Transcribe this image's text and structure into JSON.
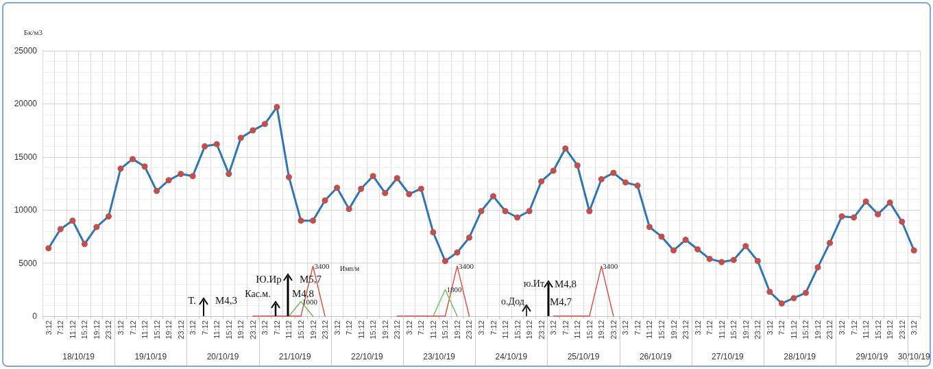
{
  "chart_data": {
    "type": "line",
    "ylabel": "Бк/м3",
    "categories": [
      "3:12",
      "7:12",
      "11:12",
      "15:12",
      "19:12",
      "23:12",
      "3:12",
      "7:12",
      "11:12",
      "15:12",
      "19:12",
      "23:12",
      "3:12",
      "7:12",
      "11:12",
      "15:12",
      "19:12",
      "23:12",
      "3:12",
      "7:12",
      "11:12",
      "15:12",
      "19:12",
      "23:12",
      "3:12",
      "7:12",
      "11:12",
      "15:12",
      "19:12",
      "23:12",
      "3:12",
      "7:12",
      "11:12",
      "15:12",
      "19:12",
      "23:12",
      "3:12",
      "7:12",
      "11:12",
      "15:12",
      "19:12",
      "23:12",
      "3:12",
      "7:12",
      "11:12",
      "15:12",
      "19:12",
      "23:12",
      "3:12",
      "7:12",
      "11:12",
      "15:12",
      "19:12",
      "23:12",
      "3:12",
      "7:12",
      "11:12",
      "15:12",
      "19:12",
      "23:12",
      "3:12",
      "7:12",
      "11:12",
      "15:12",
      "19:12",
      "23:12",
      "3:12",
      "7:12",
      "11:12",
      "15:12",
      "19:12",
      "23:12",
      "3:12"
    ],
    "series": [
      {
        "color": "#2e75b6",
        "colors": [
          "#c0504d",
          "#c0504d",
          "#c0504d",
          "#c0504d",
          "#c0504d",
          "#c0504d",
          "#c0504d",
          "#c0504d",
          "#c0504d",
          "#c0504d",
          "#c0504d",
          "#c0504d",
          "#c0504d",
          "#c0504d",
          "#c0504d",
          "#c0504d",
          "#c0504d",
          "#c0504d",
          "#c0504d",
          "#c0504d",
          "#c0504d",
          "#c0504d",
          "#c0504d",
          "#c0504d",
          "#c0504d",
          "#c0504d",
          "#c0504d",
          "#c0504d",
          "#c0504d",
          "#c0504d",
          "#c0504d",
          "#c0504d",
          "#c0504d",
          "#c0504d",
          "#c0504d",
          "#c0504d",
          "#c0504d",
          "#c0504d",
          "#c0504d",
          "#c0504d",
          "#c0504d",
          "#c0504d",
          "#c0504d",
          "#c0504d",
          "#c0504d",
          "#c0504d",
          "#c0504d",
          "#c0504d",
          "#c0504d",
          "#c0504d",
          "#c0504d",
          "#c0504d",
          "#c0504d",
          "#c0504d",
          "#c0504d",
          "#c0504d",
          "#c0504d",
          "#c0504d",
          "#c0504d",
          "#c0504d",
          "#c0504d",
          "#c0504d",
          "#c0504d",
          "#c0504d",
          "#c0504d",
          "#c0504d",
          "#c0504d",
          "#c0504d",
          "#c0504d",
          "#c0504d",
          "#c0504d",
          "#c0504d",
          "#c0504d"
        ],
        "values": [
          6400,
          8200,
          9000,
          6800,
          8400,
          9400,
          13900,
          14800,
          14100,
          11800,
          12800,
          13400,
          13200,
          16000,
          16200,
          13400,
          16800,
          17500,
          18100,
          19700,
          13100,
          9000,
          9000,
          10900,
          12100,
          10100,
          12000,
          13200,
          11600,
          13000,
          11500,
          12000,
          7900,
          5200,
          6000,
          7400,
          9900,
          11300,
          9900,
          9300,
          9900,
          12700,
          13700,
          15800,
          14200,
          9900,
          12900,
          13500,
          12600,
          12300,
          8400,
          7500,
          6200,
          7200,
          6300,
          5400,
          5100,
          5300,
          6600,
          5200,
          2300,
          1200,
          1700,
          2200,
          4600,
          6900,
          9400,
          9300,
          10800,
          9600,
          10700,
          8900,
          6200
        ]
      },
      {
        "type": "line",
        "axis": "y2",
        "color": "#e03a2a",
        "marker": "none",
        "values": [
          null,
          null,
          null,
          null,
          null,
          null,
          null,
          null,
          null,
          null,
          null,
          null,
          null,
          null,
          null,
          null,
          null,
          0,
          0,
          0,
          0,
          0,
          3400,
          0,
          null,
          null,
          null,
          null,
          null,
          0,
          0,
          0,
          0,
          0,
          3400,
          0,
          null,
          null,
          null,
          null,
          null,
          null,
          0,
          0,
          0,
          0,
          3400,
          0,
          null,
          null,
          null,
          null,
          null,
          null,
          null,
          null,
          null,
          null,
          null,
          null,
          null,
          null,
          null,
          null,
          null,
          null,
          null,
          null,
          null,
          null,
          null,
          null,
          null
        ],
        "value_labels": [
          null,
          null,
          null,
          null,
          null,
          null,
          null,
          null,
          null,
          null,
          null,
          null,
          null,
          null,
          null,
          null,
          null,
          null,
          null,
          null,
          null,
          null,
          "3400",
          null,
          null,
          null,
          null,
          null,
          null,
          null,
          null,
          null,
          null,
          null,
          "3400",
          null,
          null,
          null,
          null,
          null,
          null,
          null,
          null,
          null,
          null,
          null,
          "3400",
          null,
          null,
          null,
          null,
          null,
          null,
          null,
          null,
          null,
          null,
          null,
          null,
          null,
          null,
          null,
          null,
          null,
          null,
          null,
          null,
          null,
          null,
          null,
          null,
          null,
          null
        ]
      },
      {
        "type": "line",
        "axis": "y2",
        "color": "#5fb84a",
        "marker": "none",
        "values": [
          null,
          null,
          null,
          null,
          null,
          null,
          null,
          null,
          null,
          null,
          null,
          null,
          null,
          null,
          null,
          null,
          null,
          null,
          null,
          null,
          0,
          1000,
          0,
          null,
          null,
          null,
          null,
          null,
          null,
          null,
          null,
          null,
          0,
          1800,
          0,
          null,
          null,
          null,
          null,
          null,
          null,
          null,
          null,
          null,
          null,
          null,
          null,
          null,
          null,
          null,
          null,
          null,
          null,
          null,
          null,
          null,
          null,
          null,
          null,
          null,
          null,
          null,
          null,
          null,
          null,
          null,
          null,
          null,
          null,
          null,
          null,
          null,
          null
        ],
        "value_labels": [
          null,
          null,
          null,
          null,
          null,
          null,
          null,
          null,
          null,
          null,
          null,
          null,
          null,
          null,
          null,
          null,
          null,
          null,
          null,
          null,
          null,
          "1000",
          null,
          null,
          null,
          null,
          null,
          null,
          null,
          null,
          null,
          null,
          null,
          "1800",
          null,
          null,
          null,
          null,
          null,
          null,
          null,
          null,
          null,
          null,
          null,
          null,
          null,
          null,
          null,
          null,
          null,
          null,
          null,
          null,
          null,
          null,
          null,
          null,
          null,
          null,
          null,
          null,
          null,
          null,
          null,
          null,
          null,
          null,
          null,
          null,
          null,
          null,
          null
        ]
      }
    ],
    "y2lim": [
      0,
      18000
    ],
    "ylim": [
      0,
      25000
    ],
    "yticks": [
      0,
      5000,
      10000,
      15000,
      20000,
      25000
    ],
    "grid": true,
    "marker": "circle",
    "line_style": "solid",
    "annotations": [
      "18/10/19",
      "19/10/19",
      "20/10/19",
      "21/10/19",
      "22/10/19",
      "23/10/19",
      "24/10/19",
      "25/10/19",
      "26/10/19",
      "27/10/19",
      "28/10/19",
      "29/10/19",
      "30/10/19",
      "Т.",
      "M4,3",
      "Кас.м.",
      "M4,8",
      "Ю.Ир",
      "M5,7",
      "о.Дод",
      "M4,7",
      "ю.Ит",
      "M4,8",
      "Имп/м"
    ]
  }
}
